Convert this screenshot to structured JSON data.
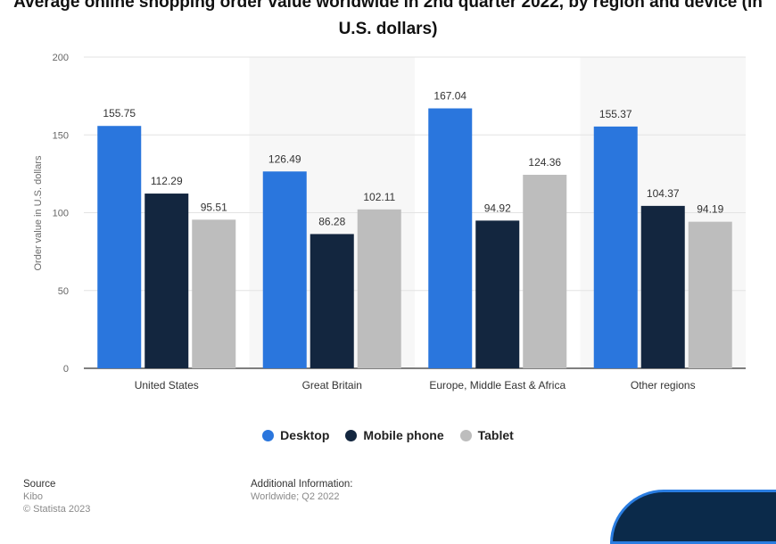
{
  "title_lines": [
    "Average online shopping order value worldwide in 2nd quarter 2022, by region and device (in",
    "U.S. dollars)"
  ],
  "chart_data": {
    "type": "bar",
    "title": "Average online shopping order value worldwide in 2nd quarter 2022, by region and device (in U.S. dollars)",
    "xlabel": "",
    "ylabel": "Order value in U.S. dollars",
    "ylim": [
      0,
      200
    ],
    "yticks": [
      0,
      50,
      100,
      150,
      200
    ],
    "categories": [
      "United States",
      "Great Britain",
      "Europe, Middle East & Africa",
      "Other regions"
    ],
    "series": [
      {
        "name": "Desktop",
        "color": "#2a76dd",
        "values": [
          155.75,
          126.49,
          167.04,
          155.37
        ]
      },
      {
        "name": "Mobile phone",
        "color": "#13263f",
        "values": [
          112.29,
          86.28,
          94.92,
          104.37
        ]
      },
      {
        "name": "Tablet",
        "color": "#bdbdbd",
        "values": [
          95.51,
          102.11,
          124.36,
          94.19
        ]
      }
    ],
    "grid": true,
    "legend_position": "bottom"
  },
  "footer": {
    "source_label": "Source",
    "source_value": "Kibo",
    "copyright": "© Statista 2023",
    "additional_label": "Additional Information:",
    "additional_value": "Worldwide; Q2 2022"
  }
}
